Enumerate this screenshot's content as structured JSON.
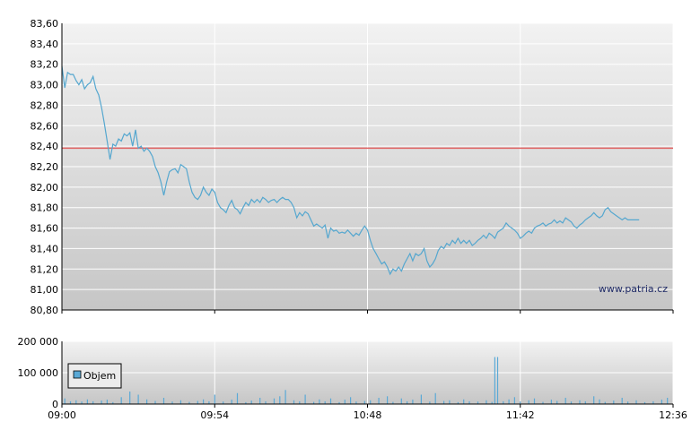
{
  "watermark": "www.patria.cz",
  "chart_data": [
    {
      "type": "line",
      "name": "price",
      "ylim": [
        80.8,
        83.6
      ],
      "yticks": [
        "83,60",
        "83,40",
        "83,20",
        "83,00",
        "82,80",
        "82,60",
        "82,40",
        "82,20",
        "82,00",
        "81,80",
        "81,60",
        "81,40",
        "81,20",
        "81,00",
        "80,80"
      ],
      "yticks_values": [
        83.6,
        83.4,
        83.2,
        83.0,
        82.8,
        82.6,
        82.4,
        82.2,
        82.0,
        81.8,
        81.6,
        81.4,
        81.2,
        81.0,
        80.8
      ],
      "xticks": [
        "09:00",
        "09:54",
        "10:48",
        "11:42",
        "12:36"
      ],
      "xlim": [
        "09:00",
        "12:36"
      ],
      "reference_line": 82.38,
      "reference_color": "#e06060",
      "line_color": "#55a7cf",
      "grid": true,
      "points": [
        [
          "09:00",
          83.18
        ],
        [
          "09:01",
          82.97
        ],
        [
          "09:02",
          83.12
        ],
        [
          "09:03",
          83.1
        ],
        [
          "09:04",
          83.1
        ],
        [
          "09:05",
          83.04
        ],
        [
          "09:06",
          83.0
        ],
        [
          "09:07",
          83.05
        ],
        [
          "09:08",
          82.96
        ],
        [
          "09:09",
          83.0
        ],
        [
          "09:10",
          83.02
        ],
        [
          "09:11",
          83.08
        ],
        [
          "09:12",
          82.96
        ],
        [
          "09:13",
          82.9
        ],
        [
          "09:14",
          82.78
        ],
        [
          "09:15",
          82.62
        ],
        [
          "09:16",
          82.45
        ],
        [
          "09:17",
          82.27
        ],
        [
          "09:18",
          82.42
        ],
        [
          "09:19",
          82.4
        ],
        [
          "09:20",
          82.47
        ],
        [
          "09:21",
          82.45
        ],
        [
          "09:22",
          82.52
        ],
        [
          "09:23",
          82.5
        ],
        [
          "09:24",
          82.53
        ],
        [
          "09:25",
          82.4
        ],
        [
          "09:26",
          82.56
        ],
        [
          "09:27",
          82.38
        ],
        [
          "09:28",
          82.4
        ],
        [
          "09:29",
          82.35
        ],
        [
          "09:30",
          82.38
        ],
        [
          "09:31",
          82.35
        ],
        [
          "09:32",
          82.3
        ],
        [
          "09:33",
          82.2
        ],
        [
          "09:34",
          82.14
        ],
        [
          "09:35",
          82.05
        ],
        [
          "09:36",
          81.92
        ],
        [
          "09:37",
          82.05
        ],
        [
          "09:38",
          82.15
        ],
        [
          "09:39",
          82.17
        ],
        [
          "09:40",
          82.18
        ],
        [
          "09:41",
          82.14
        ],
        [
          "09:42",
          82.22
        ],
        [
          "09:43",
          82.2
        ],
        [
          "09:44",
          82.18
        ],
        [
          "09:45",
          82.05
        ],
        [
          "09:46",
          81.95
        ],
        [
          "09:47",
          81.9
        ],
        [
          "09:48",
          81.88
        ],
        [
          "09:49",
          81.92
        ],
        [
          "09:50",
          82.0
        ],
        [
          "09:51",
          81.95
        ],
        [
          "09:52",
          81.92
        ],
        [
          "09:53",
          81.98
        ],
        [
          "09:54",
          81.95
        ],
        [
          "09:55",
          81.85
        ],
        [
          "09:56",
          81.8
        ],
        [
          "09:57",
          81.78
        ],
        [
          "09:58",
          81.75
        ],
        [
          "09:59",
          81.82
        ],
        [
          "10:00",
          81.87
        ],
        [
          "10:01",
          81.8
        ],
        [
          "10:02",
          81.78
        ],
        [
          "10:03",
          81.74
        ],
        [
          "10:04",
          81.8
        ],
        [
          "10:05",
          81.85
        ],
        [
          "10:06",
          81.82
        ],
        [
          "10:07",
          81.88
        ],
        [
          "10:08",
          81.85
        ],
        [
          "10:09",
          81.88
        ],
        [
          "10:10",
          81.85
        ],
        [
          "10:11",
          81.9
        ],
        [
          "10:12",
          81.88
        ],
        [
          "10:13",
          81.85
        ],
        [
          "10:14",
          81.87
        ],
        [
          "10:15",
          81.88
        ],
        [
          "10:16",
          81.85
        ],
        [
          "10:17",
          81.88
        ],
        [
          "10:18",
          81.9
        ],
        [
          "10:19",
          81.88
        ],
        [
          "10:20",
          81.88
        ],
        [
          "10:21",
          81.85
        ],
        [
          "10:22",
          81.8
        ],
        [
          "10:23",
          81.7
        ],
        [
          "10:24",
          81.75
        ],
        [
          "10:25",
          81.72
        ],
        [
          "10:26",
          81.76
        ],
        [
          "10:27",
          81.74
        ],
        [
          "10:28",
          81.68
        ],
        [
          "10:29",
          81.62
        ],
        [
          "10:30",
          81.64
        ],
        [
          "10:31",
          81.62
        ],
        [
          "10:32",
          81.6
        ],
        [
          "10:33",
          81.63
        ],
        [
          "10:34",
          81.5
        ],
        [
          "10:35",
          81.6
        ],
        [
          "10:36",
          81.57
        ],
        [
          "10:37",
          81.58
        ],
        [
          "10:38",
          81.55
        ],
        [
          "10:39",
          81.56
        ],
        [
          "10:40",
          81.55
        ],
        [
          "10:41",
          81.58
        ],
        [
          "10:42",
          81.55
        ],
        [
          "10:43",
          81.52
        ],
        [
          "10:44",
          81.55
        ],
        [
          "10:45",
          81.53
        ],
        [
          "10:46",
          81.58
        ],
        [
          "10:47",
          81.62
        ],
        [
          "10:48",
          81.58
        ],
        [
          "10:49",
          81.48
        ],
        [
          "10:50",
          81.4
        ],
        [
          "10:51",
          81.35
        ],
        [
          "10:52",
          81.3
        ],
        [
          "10:53",
          81.25
        ],
        [
          "10:54",
          81.27
        ],
        [
          "10:55",
          81.22
        ],
        [
          "10:56",
          81.15
        ],
        [
          "10:57",
          81.2
        ],
        [
          "10:58",
          81.18
        ],
        [
          "10:59",
          81.22
        ],
        [
          "11:00",
          81.18
        ],
        [
          "11:01",
          81.25
        ],
        [
          "11:02",
          81.3
        ],
        [
          "11:03",
          81.35
        ],
        [
          "11:04",
          81.28
        ],
        [
          "11:05",
          81.35
        ],
        [
          "11:06",
          81.33
        ],
        [
          "11:07",
          81.35
        ],
        [
          "11:08",
          81.4
        ],
        [
          "11:09",
          81.28
        ],
        [
          "11:10",
          81.22
        ],
        [
          "11:11",
          81.25
        ],
        [
          "11:12",
          81.3
        ],
        [
          "11:13",
          81.38
        ],
        [
          "11:14",
          81.42
        ],
        [
          "11:15",
          81.4
        ],
        [
          "11:16",
          81.45
        ],
        [
          "11:17",
          81.43
        ],
        [
          "11:18",
          81.48
        ],
        [
          "11:19",
          81.45
        ],
        [
          "11:20",
          81.5
        ],
        [
          "11:21",
          81.45
        ],
        [
          "11:22",
          81.48
        ],
        [
          "11:23",
          81.45
        ],
        [
          "11:24",
          81.48
        ],
        [
          "11:25",
          81.43
        ],
        [
          "11:26",
          81.45
        ],
        [
          "11:27",
          81.48
        ],
        [
          "11:28",
          81.5
        ],
        [
          "11:29",
          81.53
        ],
        [
          "11:30",
          81.5
        ],
        [
          "11:31",
          81.55
        ],
        [
          "11:32",
          81.53
        ],
        [
          "11:33",
          81.5
        ],
        [
          "11:34",
          81.56
        ],
        [
          "11:35",
          81.58
        ],
        [
          "11:36",
          81.6
        ],
        [
          "11:37",
          81.65
        ],
        [
          "11:38",
          81.62
        ],
        [
          "11:39",
          81.6
        ],
        [
          "11:40",
          81.58
        ],
        [
          "11:41",
          81.55
        ],
        [
          "11:42",
          81.5
        ],
        [
          "11:43",
          81.52
        ],
        [
          "11:44",
          81.55
        ],
        [
          "11:45",
          81.57
        ],
        [
          "11:46",
          81.55
        ],
        [
          "11:47",
          81.6
        ],
        [
          "11:48",
          81.62
        ],
        [
          "11:49",
          81.63
        ],
        [
          "11:50",
          81.65
        ],
        [
          "11:51",
          81.62
        ],
        [
          "11:52",
          81.64
        ],
        [
          "11:53",
          81.65
        ],
        [
          "11:54",
          81.68
        ],
        [
          "11:55",
          81.65
        ],
        [
          "11:56",
          81.67
        ],
        [
          "11:57",
          81.65
        ],
        [
          "11:58",
          81.7
        ],
        [
          "11:59",
          81.68
        ],
        [
          "12:00",
          81.66
        ],
        [
          "12:01",
          81.62
        ],
        [
          "12:02",
          81.6
        ],
        [
          "12:03",
          81.63
        ],
        [
          "12:04",
          81.65
        ],
        [
          "12:05",
          81.68
        ],
        [
          "12:06",
          81.7
        ],
        [
          "12:07",
          81.72
        ],
        [
          "12:08",
          81.75
        ],
        [
          "12:09",
          81.72
        ],
        [
          "12:10",
          81.7
        ],
        [
          "12:11",
          81.72
        ],
        [
          "12:12",
          81.78
        ],
        [
          "12:13",
          81.8
        ],
        [
          "12:14",
          81.76
        ],
        [
          "12:15",
          81.74
        ],
        [
          "12:16",
          81.72
        ],
        [
          "12:17",
          81.7
        ],
        [
          "12:18",
          81.68
        ],
        [
          "12:19",
          81.7
        ],
        [
          "12:20",
          81.68
        ],
        [
          "12:21",
          81.68
        ],
        [
          "12:22",
          81.68
        ],
        [
          "12:23",
          81.68
        ],
        [
          "12:24",
          81.68
        ]
      ]
    },
    {
      "type": "bar",
      "name": "volume",
      "ylim": [
        0,
        200000
      ],
      "yticks": [
        "200 000",
        "100 000",
        "0"
      ],
      "yticks_values": [
        200000,
        100000,
        0
      ],
      "xticks": [
        "09:00",
        "09:54",
        "10:48",
        "11:42",
        "12:36"
      ],
      "xlim": [
        "09:00",
        "12:36"
      ],
      "grid": true,
      "bar_color": "#5aa9d6",
      "legend": {
        "label": "Objem",
        "position": "left"
      },
      "bars": [
        [
          "09:01",
          18000
        ],
        [
          "09:03",
          9000
        ],
        [
          "09:05",
          12000
        ],
        [
          "09:07",
          8000
        ],
        [
          "09:09",
          15000
        ],
        [
          "09:11",
          9000
        ],
        [
          "09:14",
          11000
        ],
        [
          "09:16",
          14000
        ],
        [
          "09:18",
          6000
        ],
        [
          "09:21",
          22000
        ],
        [
          "09:24",
          40000
        ],
        [
          "09:27",
          30000
        ],
        [
          "09:30",
          15000
        ],
        [
          "09:33",
          10000
        ],
        [
          "09:36",
          20000
        ],
        [
          "09:39",
          8000
        ],
        [
          "09:42",
          12000
        ],
        [
          "09:45",
          7000
        ],
        [
          "09:48",
          10000
        ],
        [
          "09:50",
          15000
        ],
        [
          "09:52",
          9000
        ],
        [
          "09:54",
          30000
        ],
        [
          "09:57",
          8000
        ],
        [
          "10:00",
          14000
        ],
        [
          "10:02",
          35000
        ],
        [
          "10:05",
          6000
        ],
        [
          "10:07",
          11000
        ],
        [
          "10:10",
          20000
        ],
        [
          "10:12",
          9000
        ],
        [
          "10:15",
          18000
        ],
        [
          "10:17",
          25000
        ],
        [
          "10:19",
          45000
        ],
        [
          "10:22",
          12000
        ],
        [
          "10:24",
          9000
        ],
        [
          "10:26",
          30000
        ],
        [
          "10:29",
          7000
        ],
        [
          "10:31",
          15000
        ],
        [
          "10:33",
          9000
        ],
        [
          "10:35",
          18000
        ],
        [
          "10:38",
          6000
        ],
        [
          "10:40",
          14000
        ],
        [
          "10:42",
          22000
        ],
        [
          "10:44",
          8000
        ],
        [
          "10:47",
          10000
        ],
        [
          "10:49",
          12000
        ],
        [
          "10:52",
          20000
        ],
        [
          "10:55",
          25000
        ],
        [
          "10:57",
          7000
        ],
        [
          "11:00",
          18000
        ],
        [
          "11:02",
          9000
        ],
        [
          "11:04",
          14000
        ],
        [
          "11:07",
          30000
        ],
        [
          "11:10",
          8000
        ],
        [
          "11:12",
          35000
        ],
        [
          "11:15",
          10000
        ],
        [
          "11:17",
          12000
        ],
        [
          "11:20",
          6000
        ],
        [
          "11:22",
          15000
        ],
        [
          "11:24",
          9000
        ],
        [
          "11:27",
          8000
        ],
        [
          "11:30",
          12000
        ],
        [
          "11:32",
          7000
        ],
        [
          "11:33",
          150000
        ],
        [
          "11:34",
          150000
        ],
        [
          "11:36",
          9000
        ],
        [
          "11:38",
          15000
        ],
        [
          "11:40",
          22000
        ],
        [
          "11:42",
          8000
        ],
        [
          "11:45",
          12000
        ],
        [
          "11:47",
          18000
        ],
        [
          "11:50",
          7000
        ],
        [
          "11:53",
          14000
        ],
        [
          "11:55",
          10000
        ],
        [
          "11:58",
          20000
        ],
        [
          "12:00",
          8000
        ],
        [
          "12:03",
          12000
        ],
        [
          "12:05",
          9000
        ],
        [
          "12:08",
          25000
        ],
        [
          "12:10",
          15000
        ],
        [
          "12:12",
          7000
        ],
        [
          "12:15",
          11000
        ],
        [
          "12:18",
          20000
        ],
        [
          "12:20",
          8000
        ],
        [
          "12:23",
          12000
        ],
        [
          "12:26",
          6000
        ],
        [
          "12:29",
          9000
        ],
        [
          "12:32",
          14000
        ],
        [
          "12:34",
          20000
        ]
      ]
    }
  ]
}
